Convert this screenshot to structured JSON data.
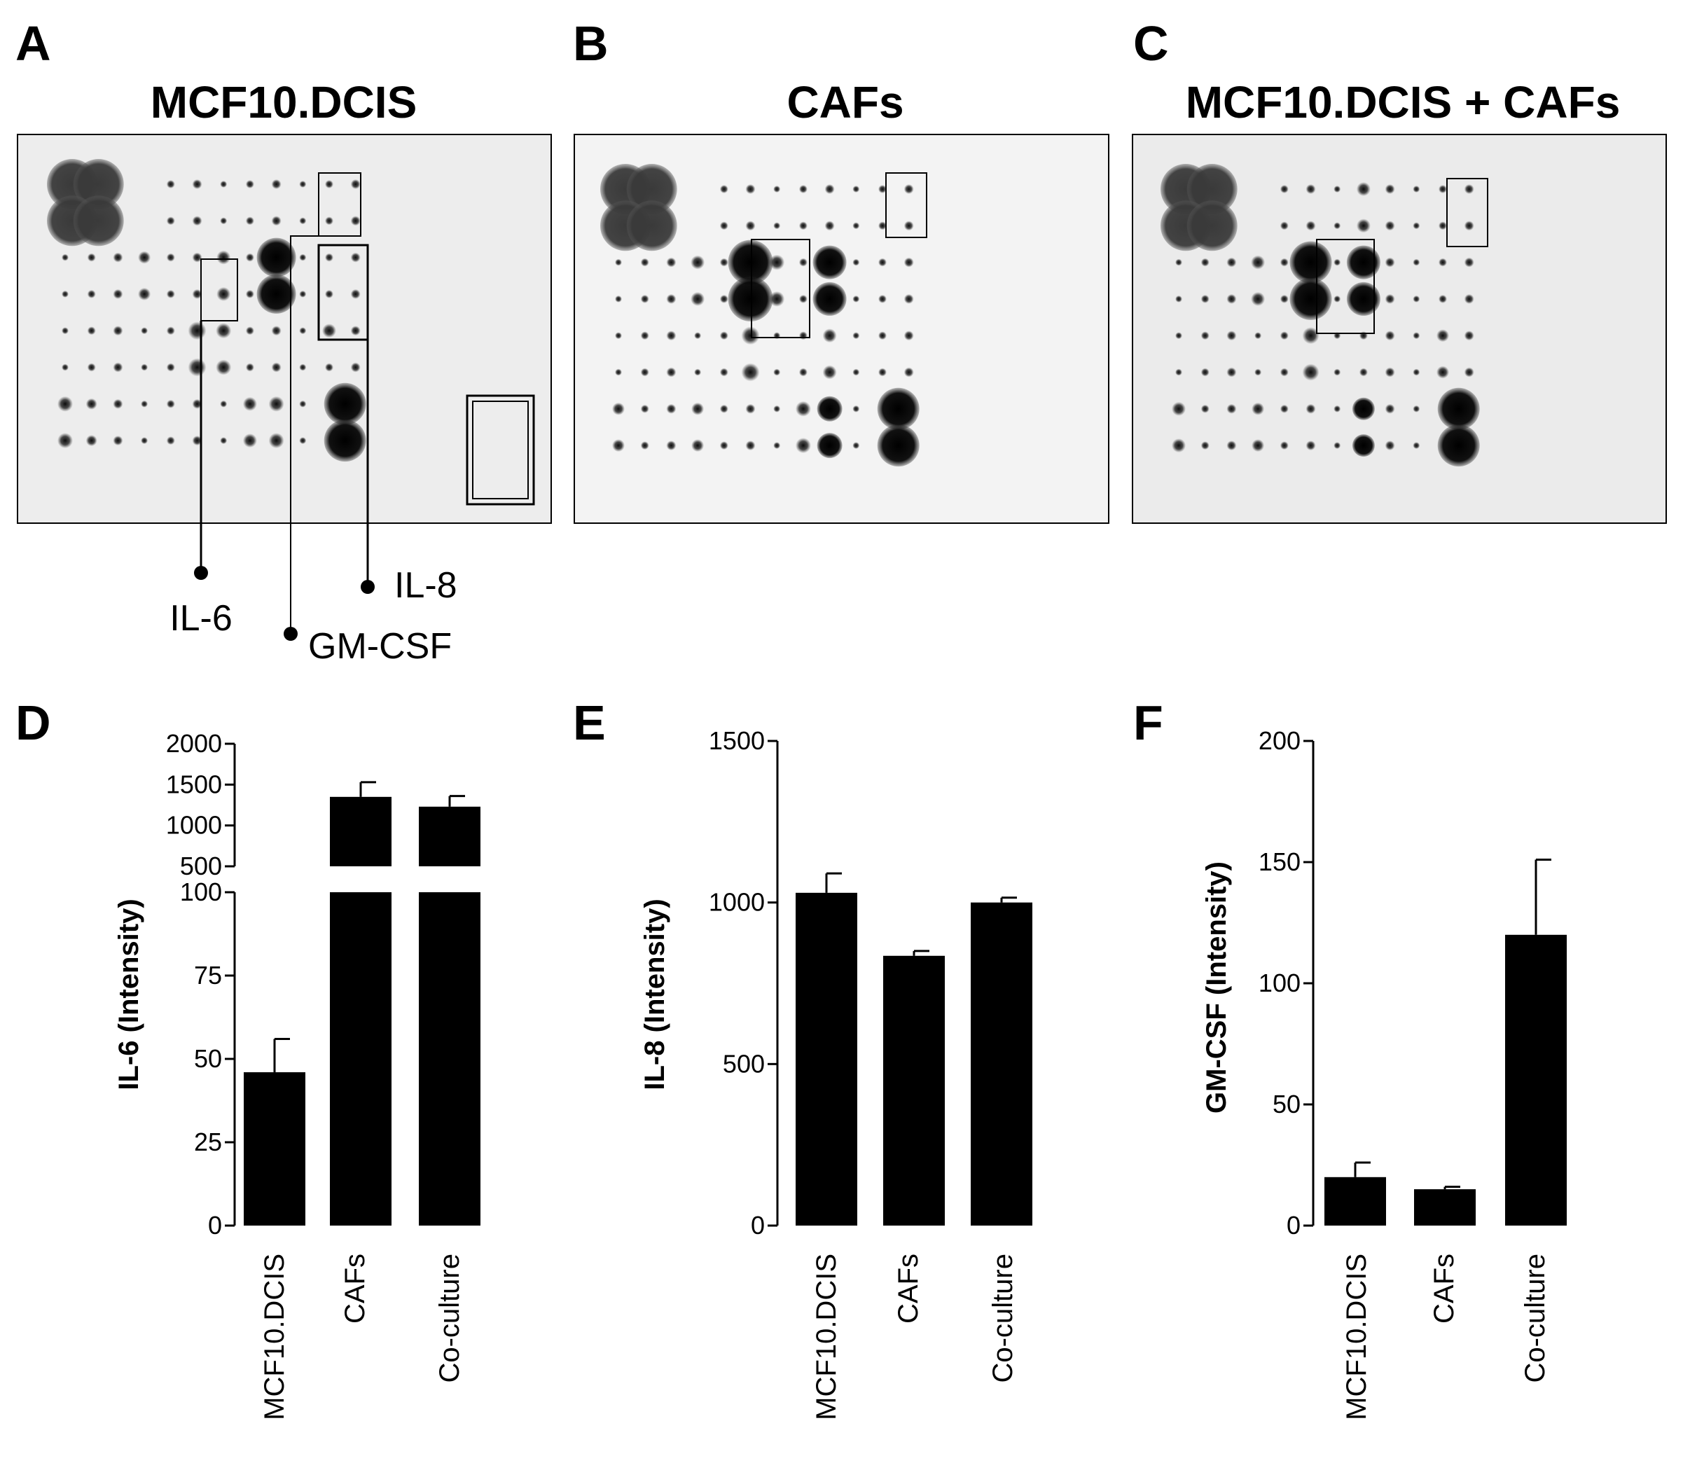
{
  "panels_top": [
    {
      "letter": "A",
      "title": "MCF10.DCIS"
    },
    {
      "letter": "B",
      "title": "CAFs"
    },
    {
      "letter": "C",
      "title": "MCF10.DCIS + CAFs"
    }
  ],
  "cytokine_labels": {
    "il6": "IL-6",
    "gmcsf": "GM-CSF",
    "il8": "IL-8"
  },
  "chart_data": [
    {
      "letter": "D",
      "type": "bar",
      "categories": [
        "MCF10.DCIS",
        "CAFs",
        "Co-culture"
      ],
      "values": [
        46,
        1350,
        1230
      ],
      "errors": [
        10,
        180,
        130
      ],
      "ylabel": "IL-6 (Intensity)",
      "axis_break": true,
      "lower_ylim": [
        0,
        100
      ],
      "lower_ticks": [
        "0",
        "25",
        "50",
        "75",
        "100"
      ],
      "upper_ylim": [
        500,
        2000
      ],
      "upper_ticks": [
        "500",
        "1000",
        "1500",
        "2000"
      ]
    },
    {
      "letter": "E",
      "type": "bar",
      "categories": [
        "MCF10.DCIS",
        "CAFs",
        "Co-culture"
      ],
      "values": [
        1030,
        835,
        1000
      ],
      "errors": [
        60,
        15,
        15
      ],
      "ylabel": "IL-8 (Intensity)",
      "ylim": [
        0,
        1500
      ],
      "ticks": [
        "0",
        "500",
        "1000",
        "1500"
      ]
    },
    {
      "letter": "F",
      "type": "bar",
      "categories": [
        "MCF10.DCIS",
        "CAFs",
        "Co-culture"
      ],
      "values": [
        20,
        15,
        120
      ],
      "errors": [
        6,
        1,
        31
      ],
      "ylabel": "GM-CSF (Intensity)",
      "ylim": [
        0,
        200
      ],
      "ticks": [
        "0",
        "50",
        "100",
        "150",
        "200"
      ]
    }
  ]
}
